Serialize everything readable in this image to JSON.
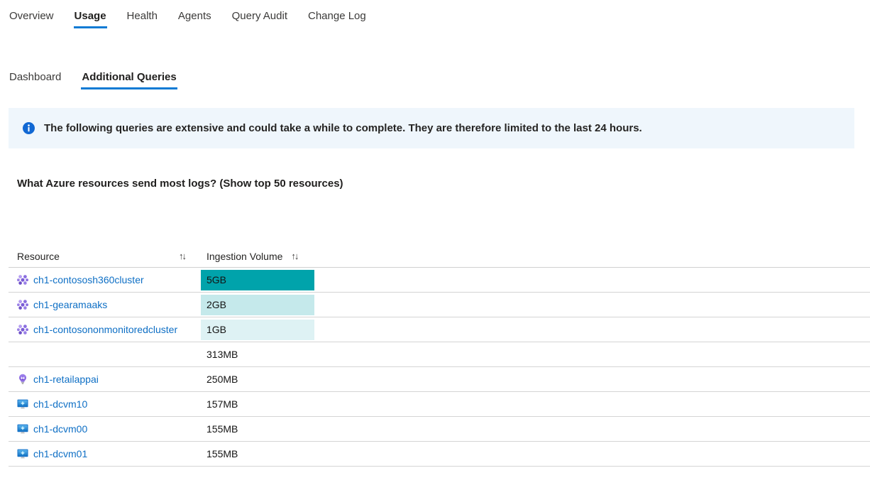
{
  "tabs": {
    "items": [
      {
        "label": "Overview",
        "selected": false
      },
      {
        "label": "Usage",
        "selected": true
      },
      {
        "label": "Health",
        "selected": false
      },
      {
        "label": "Agents",
        "selected": false
      },
      {
        "label": "Query Audit",
        "selected": false
      },
      {
        "label": "Change Log",
        "selected": false
      }
    ]
  },
  "subtabs": {
    "items": [
      {
        "label": "Dashboard",
        "selected": false
      },
      {
        "label": "Additional Queries",
        "selected": true
      }
    ]
  },
  "banner": {
    "icon": "info-icon",
    "text": "The following queries are extensive and could take a while to complete. They are therefore limited to the last 24 hours."
  },
  "section": {
    "heading": "What Azure resources send most logs? (Show top 50 resources)"
  },
  "table": {
    "columns": [
      {
        "label": "Resource",
        "sort_icon": "↑↓"
      },
      {
        "label": "Ingestion Volume",
        "sort_icon": "↑↓"
      }
    ],
    "rows": [
      {
        "resource": "ch1-contososh360cluster",
        "icon": "aks-cluster-icon",
        "volume": "5GB",
        "bar_color": "#00a3ab"
      },
      {
        "resource": "ch1-gearamaaks",
        "icon": "aks-cluster-icon",
        "volume": "2GB",
        "bar_color": "#c5e9eb"
      },
      {
        "resource": "ch1-contosononmonitoredcluster",
        "icon": "aks-cluster-icon",
        "volume": "1GB",
        "bar_color": "#def2f4"
      },
      {
        "resource": "",
        "icon": "",
        "volume": "313MB",
        "bar_color": ""
      },
      {
        "resource": "ch1-retailappai",
        "icon": "lightbulb-icon",
        "volume": "250MB",
        "bar_color": ""
      },
      {
        "resource": "ch1-dcvm10",
        "icon": "vm-icon",
        "volume": "157MB",
        "bar_color": ""
      },
      {
        "resource": "ch1-dcvm00",
        "icon": "vm-icon",
        "volume": "155MB",
        "bar_color": ""
      },
      {
        "resource": "ch1-dcvm01",
        "icon": "vm-icon",
        "volume": "155MB",
        "bar_color": ""
      }
    ]
  },
  "colors": {
    "accent": "#0078d4",
    "link": "#0e6fc5",
    "banner_bg": "#eff6fc",
    "bar_teal": "#00a3ab",
    "bar_light": "#c5e9eb",
    "bar_lighter": "#def2f4",
    "separator": "#d4d4d4"
  }
}
